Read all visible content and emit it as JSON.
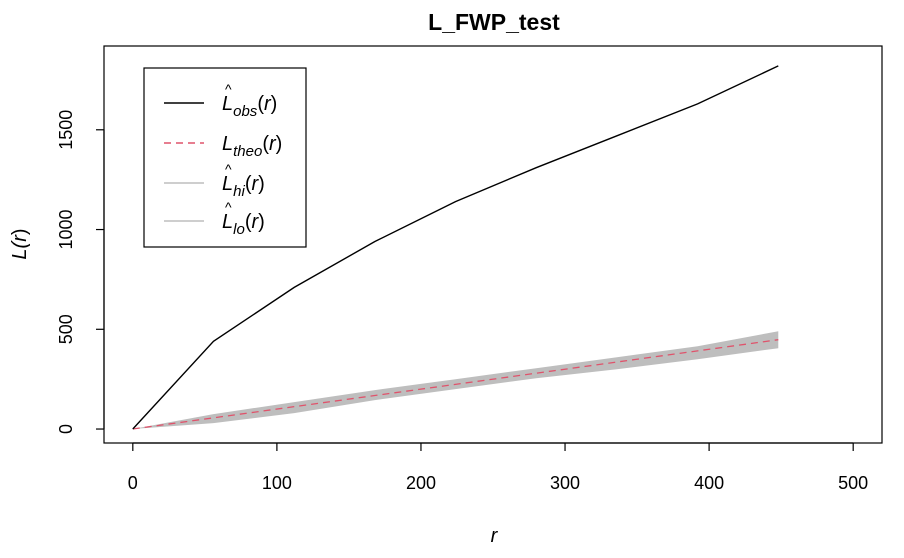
{
  "chart_data": {
    "type": "line",
    "title": "L_FWP_test",
    "xlabel": "r",
    "ylabel": "L(r)",
    "xlim": [
      -20,
      520
    ],
    "ylim": [
      -70,
      1920
    ],
    "x_ticks": [
      0,
      100,
      200,
      300,
      400,
      500
    ],
    "y_ticks": [
      0,
      500,
      1000,
      1500
    ],
    "grid": false,
    "legend_position": "top-left",
    "legend": [
      {
        "main": "L",
        "hat": true,
        "sub": "obs",
        "suffix": "(r)",
        "style": "solid",
        "color": "#000000"
      },
      {
        "main": "L",
        "hat": false,
        "sub": "theo",
        "suffix": "(r)",
        "style": "dashed",
        "color": "#DF536B"
      },
      {
        "main": "L",
        "hat": true,
        "sub": "hi",
        "suffix": "(r)",
        "style": "solid",
        "color": "#BEBEBE"
      },
      {
        "main": "L",
        "hat": true,
        "sub": "lo",
        "suffix": "(r)",
        "style": "solid",
        "color": "#BEBEBE"
      }
    ],
    "series": [
      {
        "key": "obs",
        "x": [
          0,
          56,
          112,
          168,
          224,
          280,
          336,
          392,
          448
        ],
        "y": [
          0,
          440,
          710,
          940,
          1140,
          1310,
          1470,
          1630,
          1820
        ]
      },
      {
        "key": "theo",
        "x": [
          0,
          448
        ],
        "y": [
          0,
          448
        ]
      },
      {
        "key": "hi",
        "x": [
          0,
          56,
          112,
          168,
          224,
          280,
          336,
          392,
          448
        ],
        "y": [
          0,
          75,
          135,
          195,
          250,
          305,
          360,
          415,
          490
        ]
      },
      {
        "key": "lo",
        "x": [
          0,
          56,
          112,
          168,
          224,
          280,
          336,
          392,
          448
        ],
        "y": [
          0,
          30,
          80,
          145,
          200,
          255,
          300,
          350,
          405
        ]
      }
    ]
  }
}
